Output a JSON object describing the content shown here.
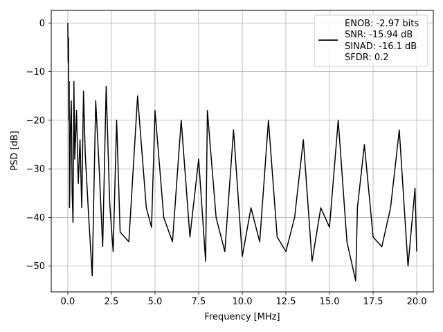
{
  "chart_data": {
    "type": "line",
    "title": "",
    "xlabel": "Frequency [MHz]",
    "ylabel": "PSD [dB]",
    "xlim": [
      -0.95,
      20.95
    ],
    "ylim": [
      -55.3,
      2.6
    ],
    "xticks": [
      0.0,
      2.5,
      5.0,
      7.5,
      10.0,
      12.5,
      15.0,
      17.5,
      20.0
    ],
    "xtick_labels": [
      "0.0",
      "2.5",
      "5.0",
      "7.5",
      "10.0",
      "12.5",
      "15.0",
      "17.5",
      "20.0"
    ],
    "yticks": [
      0,
      -10,
      -20,
      -30,
      -40,
      -50
    ],
    "ytick_labels": [
      "0",
      "−10",
      "−20",
      "−30",
      "−40",
      "−50"
    ],
    "grid": true,
    "legend_position": "top-right",
    "series_color": "#000000",
    "series": [
      {
        "x": [
          0.0,
          0.02,
          0.04,
          0.06,
          0.08,
          0.1,
          0.15,
          0.2,
          0.25,
          0.3,
          0.35,
          0.4,
          0.5,
          0.6,
          0.7,
          0.8,
          0.9,
          1.0,
          1.2,
          1.4,
          1.6,
          1.8,
          2.0,
          2.2,
          2.4,
          2.6,
          2.8,
          3.0,
          3.5,
          4.0,
          4.5,
          4.8,
          5.0,
          5.5,
          6.0,
          6.5,
          7.0,
          7.5,
          7.9,
          8.0,
          8.5,
          9.0,
          9.5,
          10.0,
          10.5,
          11.0,
          11.5,
          12.0,
          12.5,
          13.0,
          13.5,
          14.0,
          14.5,
          15.0,
          15.5,
          16.0,
          16.5,
          16.6,
          17.0,
          17.5,
          18.0,
          18.5,
          19.0,
          19.5,
          19.9,
          20.0
        ],
        "y": [
          0,
          -8,
          -3,
          -20,
          -12,
          -38,
          -22,
          -16,
          -35,
          -41,
          -12,
          -28,
          -18,
          -33,
          -24,
          -38,
          -14,
          -27,
          -40,
          -52,
          -16,
          -30,
          -46,
          -13,
          -37,
          -47,
          -20,
          -43,
          -45,
          -15,
          -38,
          -42,
          -18,
          -40,
          -45,
          -20,
          -44,
          -28,
          -49,
          -18,
          -40,
          -47,
          -22,
          -48,
          -38,
          -45,
          -20,
          -44,
          -47,
          -40,
          -24,
          -49,
          -38,
          -42,
          -20,
          -45,
          -53,
          -38,
          -25,
          -44,
          -46,
          -38,
          -22,
          -50,
          -34,
          -47
        ]
      }
    ],
    "legend_entries": [
      "ENOB: -2.97 bits",
      "SNR: -15.94 dB",
      "SINAD: -16.1 dB",
      "SFDR: 0.2"
    ]
  }
}
